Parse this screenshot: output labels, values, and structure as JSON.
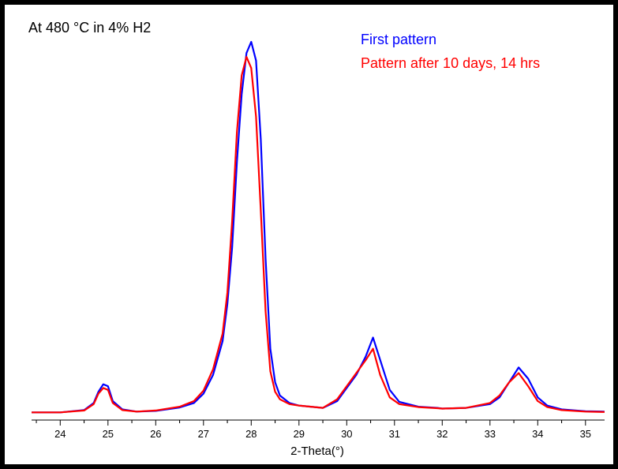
{
  "chart_data": {
    "type": "line",
    "annotation": "At 480 °C in 4% H2",
    "xlabel": "2-Theta(°)",
    "ylabel": "",
    "xlim": [
      23.4,
      35.4
    ],
    "ylim": [
      0,
      100
    ],
    "grid": false,
    "legend_placement": "top-right",
    "x_ticks": [
      "24",
      "25",
      "26",
      "27",
      "28",
      "29",
      "30",
      "31",
      "32",
      "33",
      "34",
      "35"
    ],
    "series": [
      {
        "name": "First pattern",
        "color": "#0000ff",
        "x": [
          23.4,
          24.0,
          24.5,
          24.7,
          24.8,
          24.9,
          25.0,
          25.1,
          25.3,
          25.6,
          26.0,
          26.5,
          26.8,
          27.0,
          27.2,
          27.4,
          27.5,
          27.6,
          27.7,
          27.8,
          27.9,
          28.0,
          28.1,
          28.2,
          28.3,
          28.4,
          28.5,
          28.6,
          28.8,
          29.0,
          29.5,
          29.8,
          30.0,
          30.2,
          30.4,
          30.55,
          30.7,
          30.9,
          31.1,
          31.5,
          31.9,
          32.0,
          32.5,
          33.0,
          33.2,
          33.4,
          33.6,
          33.8,
          34.0,
          34.2,
          34.5,
          35.0,
          35.4
        ],
        "y": [
          1.0,
          1.0,
          1.6,
          3.5,
          6.5,
          8.5,
          8.0,
          4.0,
          1.8,
          1.2,
          1.4,
          2.3,
          3.5,
          6.0,
          11.0,
          20.0,
          30.0,
          45.0,
          68.0,
          86.0,
          97.0,
          100.0,
          95.0,
          74.0,
          42.0,
          18.0,
          9.0,
          5.5,
          3.5,
          2.8,
          2.2,
          4.0,
          7.5,
          11.0,
          16.0,
          21.0,
          15.0,
          7.0,
          3.8,
          2.5,
          2.2,
          2.0,
          2.2,
          3.2,
          5.0,
          9.0,
          13.0,
          10.0,
          5.0,
          2.8,
          1.8,
          1.3,
          1.2
        ]
      },
      {
        "name": "Pattern after 10 days, 14 hrs",
        "color": "#ff0000",
        "x": [
          23.4,
          24.0,
          24.5,
          24.7,
          24.8,
          24.9,
          25.0,
          25.1,
          25.3,
          25.6,
          26.0,
          26.5,
          26.8,
          27.0,
          27.2,
          27.4,
          27.5,
          27.6,
          27.7,
          27.8,
          27.9,
          28.0,
          28.1,
          28.2,
          28.3,
          28.4,
          28.5,
          28.6,
          28.8,
          29.0,
          29.5,
          29.8,
          30.0,
          30.2,
          30.4,
          30.55,
          30.7,
          30.9,
          31.1,
          31.5,
          31.9,
          32.0,
          32.5,
          33.0,
          33.2,
          33.4,
          33.6,
          33.8,
          34.0,
          34.2,
          34.5,
          35.0,
          35.4
        ],
        "y": [
          1.0,
          1.0,
          1.5,
          3.2,
          6.0,
          7.5,
          7.0,
          3.5,
          1.6,
          1.2,
          1.5,
          2.5,
          4.0,
          6.8,
          12.5,
          22.0,
          33.0,
          52.0,
          76.0,
          91.0,
          96.0,
          93.0,
          80.0,
          55.0,
          28.0,
          12.0,
          6.5,
          4.5,
          3.2,
          2.8,
          2.2,
          4.5,
          8.0,
          11.5,
          15.0,
          18.0,
          11.0,
          5.0,
          3.2,
          2.4,
          2.1,
          2.0,
          2.2,
          3.5,
          5.5,
          9.0,
          11.5,
          8.0,
          4.0,
          2.4,
          1.6,
          1.2,
          1.1
        ]
      }
    ]
  }
}
